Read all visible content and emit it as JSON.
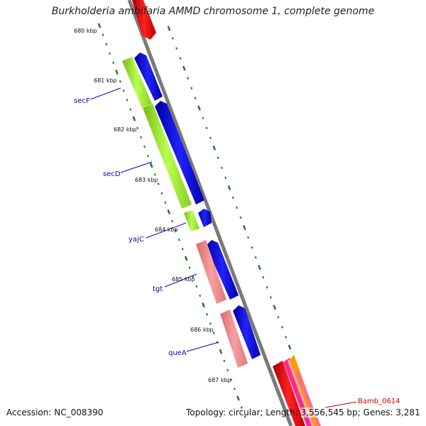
{
  "title": "Burkholderia ambifaria AMMD chromosome 1, complete genome",
  "footer": {
    "accession_label": "Accession:",
    "accession": "NC_008390",
    "topology_label": "Topology:",
    "topology": "circular;",
    "length_label": "Length:",
    "length": "3,556,545 bp;",
    "genes_label": "Genes:",
    "genes": "3,281"
  },
  "ticks": [
    "680 kbp",
    "681 kbp",
    "682 kbp",
    "683 kbp",
    "684 kbp",
    "685 kbp",
    "686 kbp",
    "687 kbp"
  ],
  "gene_labels": [
    "secF",
    "secD",
    "yajC",
    "tgt",
    "queA",
    "Bamb_0614"
  ],
  "colors": {
    "green": "#aaee33",
    "blue": "#0000ee",
    "salmon": "#f09090",
    "red": "#ee0000",
    "pink": "#ff1493",
    "orange": "#ff9900",
    "backbone": "#888888",
    "tick": "#227722",
    "label_blue": "#0000aa",
    "label_red": "#cc0000"
  }
}
